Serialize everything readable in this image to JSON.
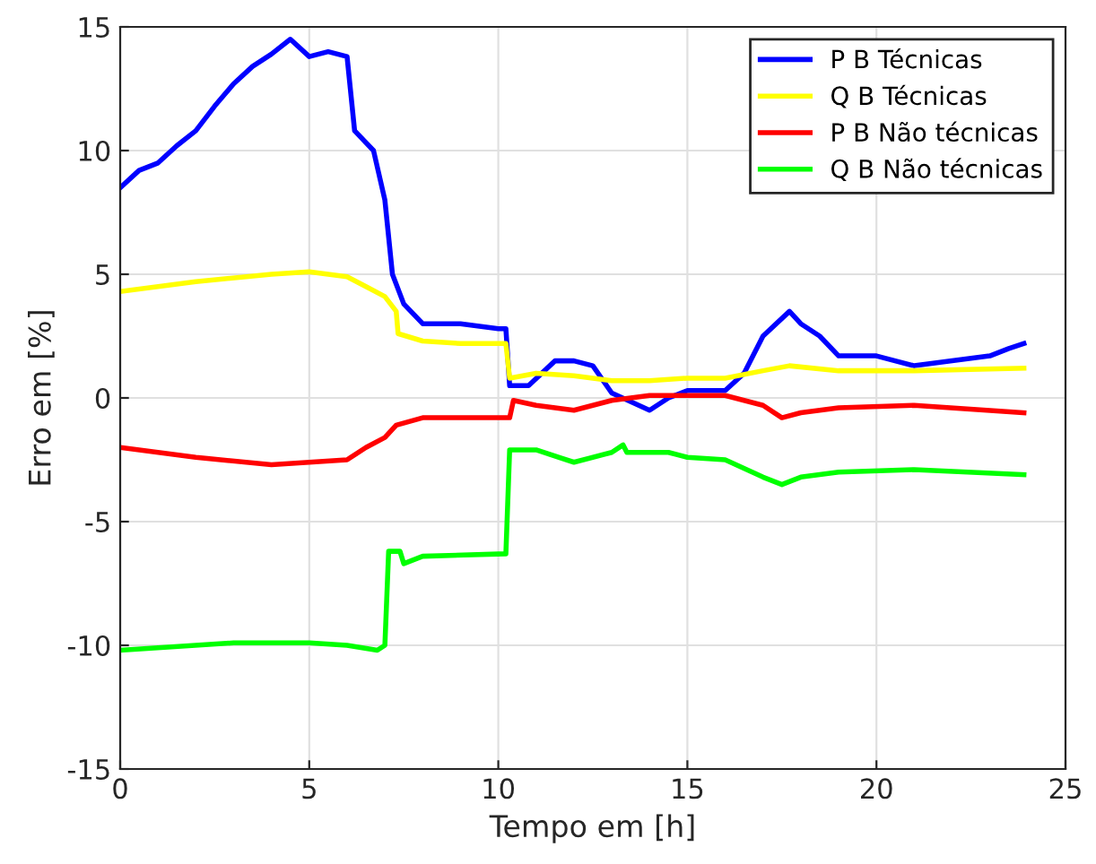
{
  "chart_data": {
    "type": "line",
    "xlabel": "Tempo em [h]",
    "ylabel": "Erro em [%]",
    "xlim": [
      0,
      25
    ],
    "xticks": [
      0,
      5,
      10,
      15,
      20,
      25
    ],
    "ylim": [
      -15,
      15
    ],
    "yticks": [
      -15,
      -10,
      -5,
      0,
      5,
      10,
      15
    ],
    "grid": true,
    "legend": "top right",
    "marker": "none",
    "line_style": "solid",
    "series": [
      {
        "name": "P B Técnicas",
        "color": "#0000ff",
        "x": [
          0,
          0.5,
          1,
          1.5,
          2,
          2.5,
          3,
          3.5,
          4,
          4.5,
          5,
          5.5,
          6,
          6.2,
          6.7,
          7,
          7.2,
          7.5,
          8,
          9,
          10,
          10.2,
          10.3,
          10.8,
          11.5,
          12,
          12.5,
          13,
          14,
          14.5,
          15,
          16,
          16.5,
          17,
          17.7,
          18,
          18.5,
          19,
          20,
          21,
          22,
          23,
          23.5,
          23.9
        ],
        "values": [
          8.5,
          9.2,
          9.5,
          10.2,
          10.8,
          11.8,
          12.7,
          13.4,
          13.9,
          14.5,
          13.8,
          14.0,
          13.8,
          10.8,
          10.0,
          8.0,
          5.0,
          3.8,
          3.0,
          3.0,
          2.8,
          2.8,
          0.5,
          0.5,
          1.5,
          1.5,
          1.3,
          0.2,
          -0.5,
          0,
          0.3,
          0.3,
          1,
          2.5,
          3.5,
          3,
          2.5,
          1.7,
          1.7,
          1.3,
          1.5,
          1.7,
          2,
          2.2
        ]
      },
      {
        "name": "Q B Técnicas",
        "color": "#ffff00",
        "x": [
          0,
          2,
          4,
          5,
          6,
          6.5,
          7,
          7.3,
          7.35,
          8,
          9,
          10.2,
          10.3,
          11,
          12,
          13,
          14,
          15,
          16,
          17,
          17.7,
          19,
          21,
          23.9
        ],
        "values": [
          4.3,
          4.7,
          5.0,
          5.1,
          4.9,
          4.5,
          4.1,
          3.5,
          2.6,
          2.3,
          2.2,
          2.2,
          0.8,
          1.0,
          0.9,
          0.7,
          0.7,
          0.8,
          0.8,
          1.1,
          1.3,
          1.1,
          1.1,
          1.2
        ]
      },
      {
        "name": "P B Não técnicas",
        "color": "#ff0000",
        "x": [
          0,
          2,
          4,
          5,
          6,
          6.5,
          7,
          7.3,
          8,
          10,
          10.3,
          10.4,
          11,
          12,
          13,
          14,
          15,
          16,
          17,
          17.5,
          18,
          19,
          21,
          23.9
        ],
        "values": [
          -2.0,
          -2.4,
          -2.7,
          -2.6,
          -2.5,
          -2.0,
          -1.6,
          -1.1,
          -0.8,
          -0.8,
          -0.8,
          -0.1,
          -0.3,
          -0.5,
          -0.1,
          0.1,
          0.1,
          0.1,
          -0.3,
          -0.8,
          -0.6,
          -0.4,
          -0.3,
          -0.6
        ]
      },
      {
        "name": "Q B Não técnicas",
        "color": "#00ff00",
        "x": [
          0,
          3,
          5,
          6,
          6.8,
          7.0,
          7.1,
          7.4,
          7.5,
          8,
          10.2,
          10.3,
          11,
          12,
          13,
          13.3,
          13.4,
          14.5,
          15,
          16,
          17,
          17.5,
          18,
          19,
          21,
          23.9
        ],
        "values": [
          -10.2,
          -9.9,
          -9.9,
          -10.0,
          -10.2,
          -10.0,
          -6.2,
          -6.2,
          -6.7,
          -6.4,
          -6.3,
          -2.1,
          -2.1,
          -2.6,
          -2.2,
          -1.9,
          -2.2,
          -2.2,
          -2.4,
          -2.5,
          -3.2,
          -3.5,
          -3.2,
          -3.0,
          -2.9,
          -3.1
        ]
      }
    ]
  }
}
